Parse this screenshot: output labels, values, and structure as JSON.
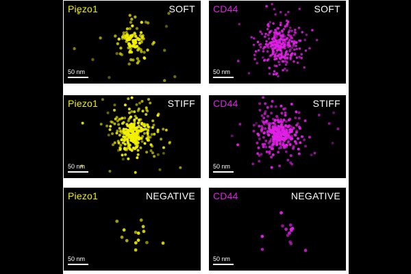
{
  "colors": {
    "piezo1": "#f2f000",
    "cd44": "#e020e6",
    "background": "#000000",
    "frame": "#ffffff",
    "text": "#ffffff"
  },
  "scale_label": "50 nm",
  "panels": [
    {
      "marker": "Piezo1",
      "condition": "SOFT",
      "channel": "piezo1",
      "pattern": "soft-sparse"
    },
    {
      "marker": "CD44",
      "condition": "SOFT",
      "channel": "cd44",
      "pattern": "soft-dense"
    },
    {
      "marker": "Piezo1",
      "condition": "STIFF",
      "channel": "piezo1",
      "pattern": "stiff-dense"
    },
    {
      "marker": "CD44",
      "condition": "STIFF",
      "channel": "cd44",
      "pattern": "stiff-dense"
    },
    {
      "marker": "Piezo1",
      "condition": "NEGATIVE",
      "channel": "piezo1",
      "pattern": "negative-few"
    },
    {
      "marker": "CD44",
      "condition": "NEGATIVE",
      "channel": "cd44",
      "pattern": "negative-few"
    }
  ]
}
